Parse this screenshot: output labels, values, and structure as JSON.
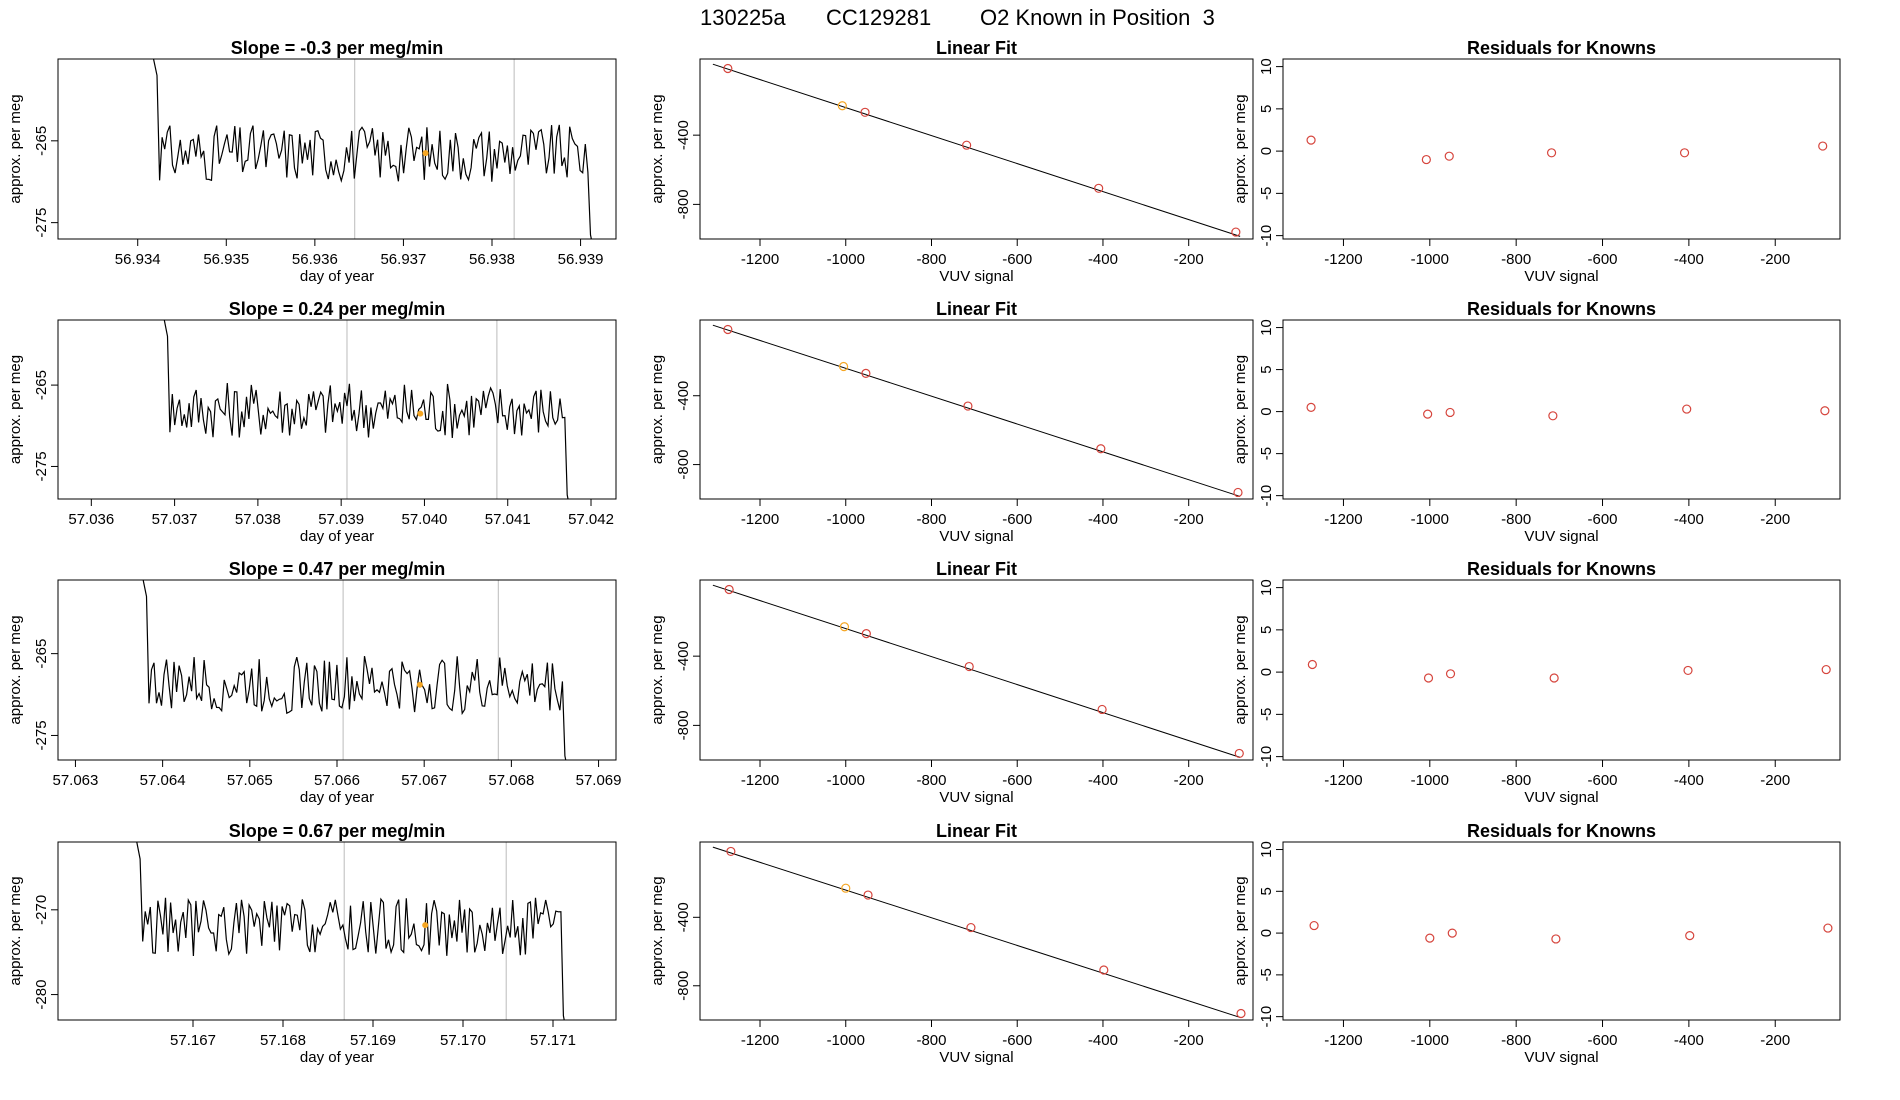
{
  "suptitle": {
    "run": "130225a",
    "cylinder": "CC129281",
    "label": "O2 Known in Position  3"
  },
  "colors": {
    "trace": "#000000",
    "marker_orange": "#f5a623",
    "marker_red": "#d6453d",
    "vline": "#bbbbbb",
    "frame": "#000000"
  },
  "chart_data": [
    {
      "type": "line",
      "panel": "time-series",
      "row": 1,
      "title": "Slope =  -0.3  per meg/min",
      "xlabel": "day of year",
      "ylabel": "approx. per meg",
      "xlim": [
        56.9331,
        56.9394
      ],
      "ylim": [
        -277,
        -255
      ],
      "xticks": [
        56.934,
        56.935,
        56.936,
        56.937,
        56.938,
        56.939
      ],
      "xtick_labels": [
        "56.934",
        "56.935",
        "56.936",
        "56.937",
        "56.938",
        "56.939"
      ],
      "yticks": [
        -265,
        -275
      ],
      "ytick_labels": [
        "-265",
        "-275"
      ],
      "vlines": [
        56.93645,
        56.93825
      ],
      "marker": {
        "x": 56.93725,
        "y": -266.5
      },
      "series_start": 56.9341,
      "series_end": 56.9392,
      "baseline": -266.5
    },
    {
      "type": "line",
      "panel": "time-series",
      "row": 2,
      "title": "Slope =  0.24  per meg/min",
      "xlabel": "day of year",
      "ylabel": "approx. per meg",
      "xlim": [
        57.0356,
        57.0423
      ],
      "ylim": [
        -279,
        -257
      ],
      "xticks": [
        57.036,
        57.037,
        57.038,
        57.039,
        57.04,
        57.041,
        57.042
      ],
      "xtick_labels": [
        "57.036",
        "57.037",
        "57.038",
        "57.039",
        "57.040",
        "57.041",
        "57.042"
      ],
      "yticks": [
        -265,
        -275
      ],
      "ytick_labels": [
        "-265",
        "-275"
      ],
      "vlines": [
        57.03907,
        57.04087
      ],
      "marker": {
        "x": 57.03995,
        "y": -268.5
      },
      "series_start": 57.0368,
      "series_end": 57.0418,
      "baseline": -268
    },
    {
      "type": "line",
      "panel": "time-series",
      "row": 3,
      "title": "Slope =  0.47  per meg/min",
      "xlabel": "day of year",
      "ylabel": "approx. per meg",
      "xlim": [
        57.0628,
        57.0692
      ],
      "ylim": [
        -278,
        -256
      ],
      "xticks": [
        57.063,
        57.064,
        57.065,
        57.066,
        57.067,
        57.068,
        57.069
      ],
      "xtick_labels": [
        "57.063",
        "57.064",
        "57.065",
        "57.066",
        "57.067",
        "57.068",
        "57.069"
      ],
      "yticks": [
        -265,
        -275
      ],
      "ytick_labels": [
        "-265",
        "-275"
      ],
      "vlines": [
        57.06607,
        57.06785
      ],
      "marker": {
        "x": 57.06695,
        "y": -268.8
      },
      "series_start": 57.0637,
      "series_end": 57.0687,
      "baseline": -268.8
    },
    {
      "type": "line",
      "panel": "time-series",
      "row": 4,
      "title": "Slope =  0.67  per meg/min",
      "xlabel": "day of year",
      "ylabel": "approx. per meg",
      "xlim": [
        57.1655,
        57.1717
      ],
      "ylim": [
        -283,
        -262
      ],
      "xticks": [
        57.167,
        57.168,
        57.169,
        57.17,
        57.171
      ],
      "xtick_labels": [
        "57.167",
        "57.168",
        "57.169",
        "57.170",
        "57.171"
      ],
      "yticks": [
        -270,
        -280
      ],
      "ytick_labels": [
        "-270",
        "-280"
      ],
      "vlines": [
        57.16868,
        57.17048
      ],
      "marker": {
        "x": 57.16958,
        "y": -271.8
      },
      "series_start": 57.1663,
      "series_end": 57.1712,
      "baseline": -272
    },
    {
      "type": "scatter",
      "panel": "linear-fit",
      "row": 1,
      "title": "Linear Fit",
      "xlabel": "VUV signal",
      "ylabel": "approx. per meg",
      "xlim": [
        -1340,
        -50
      ],
      "ylim": [
        -1000,
        40
      ],
      "xticks": [
        -1200,
        -1000,
        -800,
        -600,
        -400,
        -200
      ],
      "xtick_labels": [
        "-1200",
        "-1000",
        "-800",
        "-600",
        "-400",
        "-200"
      ],
      "yticks": [
        -400,
        -800
      ],
      "ytick_labels": [
        "-400",
        "-800"
      ],
      "points": [
        {
          "x": -1275,
          "y": -15,
          "c": "red"
        },
        {
          "x": -1008,
          "y": -230,
          "c": "orange"
        },
        {
          "x": -955,
          "y": -268,
          "c": "red"
        },
        {
          "x": -718,
          "y": -458,
          "c": "red"
        },
        {
          "x": -410,
          "y": -707,
          "c": "red"
        },
        {
          "x": -90,
          "y": -960,
          "c": "red"
        }
      ],
      "fit_line": [
        {
          "x": -1310,
          "y": 10
        },
        {
          "x": -80,
          "y": -985
        }
      ]
    },
    {
      "type": "scatter",
      "panel": "linear-fit",
      "row": 2,
      "title": "Linear Fit",
      "xlabel": "VUV signal",
      "ylabel": "approx. per meg",
      "xlim": [
        -1340,
        -50
      ],
      "ylim": [
        -1000,
        40
      ],
      "xticks": [
        -1200,
        -1000,
        -800,
        -600,
        -400,
        -200
      ],
      "xtick_labels": [
        "-1200",
        "-1000",
        "-800",
        "-600",
        "-400",
        "-200"
      ],
      "yticks": [
        -400,
        -800
      ],
      "ytick_labels": [
        "-400",
        "-800"
      ],
      "points": [
        {
          "x": -1275,
          "y": -15,
          "c": "red"
        },
        {
          "x": -1005,
          "y": -230,
          "c": "orange"
        },
        {
          "x": -953,
          "y": -270,
          "c": "red"
        },
        {
          "x": -715,
          "y": -460,
          "c": "red"
        },
        {
          "x": -405,
          "y": -708,
          "c": "red"
        },
        {
          "x": -85,
          "y": -962,
          "c": "red"
        }
      ],
      "fit_line": [
        {
          "x": -1310,
          "y": 10
        },
        {
          "x": -80,
          "y": -985
        }
      ]
    },
    {
      "type": "scatter",
      "panel": "linear-fit",
      "row": 3,
      "title": "Linear Fit",
      "xlabel": "VUV signal",
      "ylabel": "approx. per meg",
      "xlim": [
        -1340,
        -50
      ],
      "ylim": [
        -1000,
        40
      ],
      "xticks": [
        -1200,
        -1000,
        -800,
        -600,
        -400,
        -200
      ],
      "xtick_labels": [
        "-1200",
        "-1000",
        "-800",
        "-600",
        "-400",
        "-200"
      ],
      "yticks": [
        -400,
        -800
      ],
      "ytick_labels": [
        "-400",
        "-800"
      ],
      "points": [
        {
          "x": -1272,
          "y": -15,
          "c": "red"
        },
        {
          "x": -1003,
          "y": -230,
          "c": "orange"
        },
        {
          "x": -952,
          "y": -270,
          "c": "red"
        },
        {
          "x": -712,
          "y": -460,
          "c": "red"
        },
        {
          "x": -402,
          "y": -708,
          "c": "red"
        },
        {
          "x": -82,
          "y": -962,
          "c": "red"
        }
      ],
      "fit_line": [
        {
          "x": -1310,
          "y": 10
        },
        {
          "x": -80,
          "y": -985
        }
      ]
    },
    {
      "type": "scatter",
      "panel": "linear-fit",
      "row": 4,
      "title": "Linear Fit",
      "xlabel": "VUV signal",
      "ylabel": "approx. per meg",
      "xlim": [
        -1340,
        -50
      ],
      "ylim": [
        -1000,
        40
      ],
      "xticks": [
        -1200,
        -1000,
        -800,
        -600,
        -400,
        -200
      ],
      "xtick_labels": [
        "-1200",
        "-1000",
        "-800",
        "-600",
        "-400",
        "-200"
      ],
      "yticks": [
        -400,
        -800
      ],
      "ytick_labels": [
        "-400",
        "-800"
      ],
      "points": [
        {
          "x": -1268,
          "y": -15,
          "c": "red"
        },
        {
          "x": -1000,
          "y": -230,
          "c": "orange"
        },
        {
          "x": -948,
          "y": -270,
          "c": "red"
        },
        {
          "x": -708,
          "y": -460,
          "c": "red"
        },
        {
          "x": -398,
          "y": -708,
          "c": "red"
        },
        {
          "x": -78,
          "y": -962,
          "c": "red"
        }
      ],
      "fit_line": [
        {
          "x": -1310,
          "y": 10
        },
        {
          "x": -80,
          "y": -985
        }
      ]
    },
    {
      "type": "scatter",
      "panel": "residuals",
      "row": 1,
      "title": "Residuals for Knowns",
      "xlabel": "VUV signal",
      "ylabel": "approx. per meg",
      "xlim": [
        -1340,
        -50
      ],
      "ylim": [
        -10.4,
        10.9
      ],
      "xticks": [
        -1200,
        -1000,
        -800,
        -600,
        -400,
        -200
      ],
      "xtick_labels": [
        "-1200",
        "-1000",
        "-800",
        "-600",
        "-400",
        "-200"
      ],
      "yticks": [
        10,
        5,
        0,
        -5,
        -10
      ],
      "ytick_labels": [
        "10",
        "5",
        "0",
        "-5",
        "-10"
      ],
      "points": [
        {
          "x": -1275,
          "y": 1.3,
          "c": "red"
        },
        {
          "x": -1008,
          "y": -1.0,
          "c": "red"
        },
        {
          "x": -955,
          "y": -0.6,
          "c": "red"
        },
        {
          "x": -718,
          "y": -0.2,
          "c": "red"
        },
        {
          "x": -410,
          "y": -0.2,
          "c": "red"
        },
        {
          "x": -90,
          "y": 0.6,
          "c": "red"
        }
      ]
    },
    {
      "type": "scatter",
      "panel": "residuals",
      "row": 2,
      "title": "Residuals for Knowns",
      "xlabel": "VUV signal",
      "ylabel": "approx. per meg",
      "xlim": [
        -1340,
        -50
      ],
      "ylim": [
        -10.4,
        10.9
      ],
      "xticks": [
        -1200,
        -1000,
        -800,
        -600,
        -400,
        -200
      ],
      "xtick_labels": [
        "-1200",
        "-1000",
        "-800",
        "-600",
        "-400",
        "-200"
      ],
      "yticks": [
        10,
        5,
        0,
        -5,
        -10
      ],
      "ytick_labels": [
        "10",
        "5",
        "0",
        "-5",
        "-10"
      ],
      "points": [
        {
          "x": -1275,
          "y": 0.5,
          "c": "red"
        },
        {
          "x": -1005,
          "y": -0.3,
          "c": "red"
        },
        {
          "x": -953,
          "y": -0.1,
          "c": "red"
        },
        {
          "x": -715,
          "y": -0.5,
          "c": "red"
        },
        {
          "x": -405,
          "y": 0.3,
          "c": "red"
        },
        {
          "x": -85,
          "y": 0.1,
          "c": "red"
        }
      ]
    },
    {
      "type": "scatter",
      "panel": "residuals",
      "row": 3,
      "title": "Residuals for Knowns",
      "xlabel": "VUV signal",
      "ylabel": "approx. per meg",
      "xlim": [
        -1340,
        -50
      ],
      "ylim": [
        -10.4,
        10.9
      ],
      "xticks": [
        -1200,
        -1000,
        -800,
        -600,
        -400,
        -200
      ],
      "xtick_labels": [
        "-1200",
        "-1000",
        "-800",
        "-600",
        "-400",
        "-200"
      ],
      "yticks": [
        10,
        5,
        0,
        -5,
        -10
      ],
      "ytick_labels": [
        "10",
        "5",
        "0",
        "-5",
        "-10"
      ],
      "points": [
        {
          "x": -1272,
          "y": 0.9,
          "c": "red"
        },
        {
          "x": -1003,
          "y": -0.7,
          "c": "red"
        },
        {
          "x": -952,
          "y": -0.2,
          "c": "red"
        },
        {
          "x": -712,
          "y": -0.7,
          "c": "red"
        },
        {
          "x": -402,
          "y": 0.2,
          "c": "red"
        },
        {
          "x": -82,
          "y": 0.3,
          "c": "red"
        }
      ]
    },
    {
      "type": "scatter",
      "panel": "residuals",
      "row": 4,
      "title": "Residuals for Knowns",
      "xlabel": "VUV signal",
      "ylabel": "approx. per meg",
      "xlim": [
        -1340,
        -50
      ],
      "ylim": [
        -10.4,
        10.9
      ],
      "xticks": [
        -1200,
        -1000,
        -800,
        -600,
        -400,
        -200
      ],
      "xtick_labels": [
        "-1200",
        "-1000",
        "-800",
        "-600",
        "-400",
        "-200"
      ],
      "yticks": [
        10,
        5,
        0,
        -5,
        -10
      ],
      "ytick_labels": [
        "10",
        "5",
        "0",
        "-5",
        "-10"
      ],
      "points": [
        {
          "x": -1268,
          "y": 0.9,
          "c": "red"
        },
        {
          "x": -1000,
          "y": -0.6,
          "c": "red"
        },
        {
          "x": -948,
          "y": 0.0,
          "c": "red"
        },
        {
          "x": -708,
          "y": -0.7,
          "c": "red"
        },
        {
          "x": -398,
          "y": -0.3,
          "c": "red"
        },
        {
          "x": -78,
          "y": 0.6,
          "c": "red"
        }
      ]
    }
  ]
}
